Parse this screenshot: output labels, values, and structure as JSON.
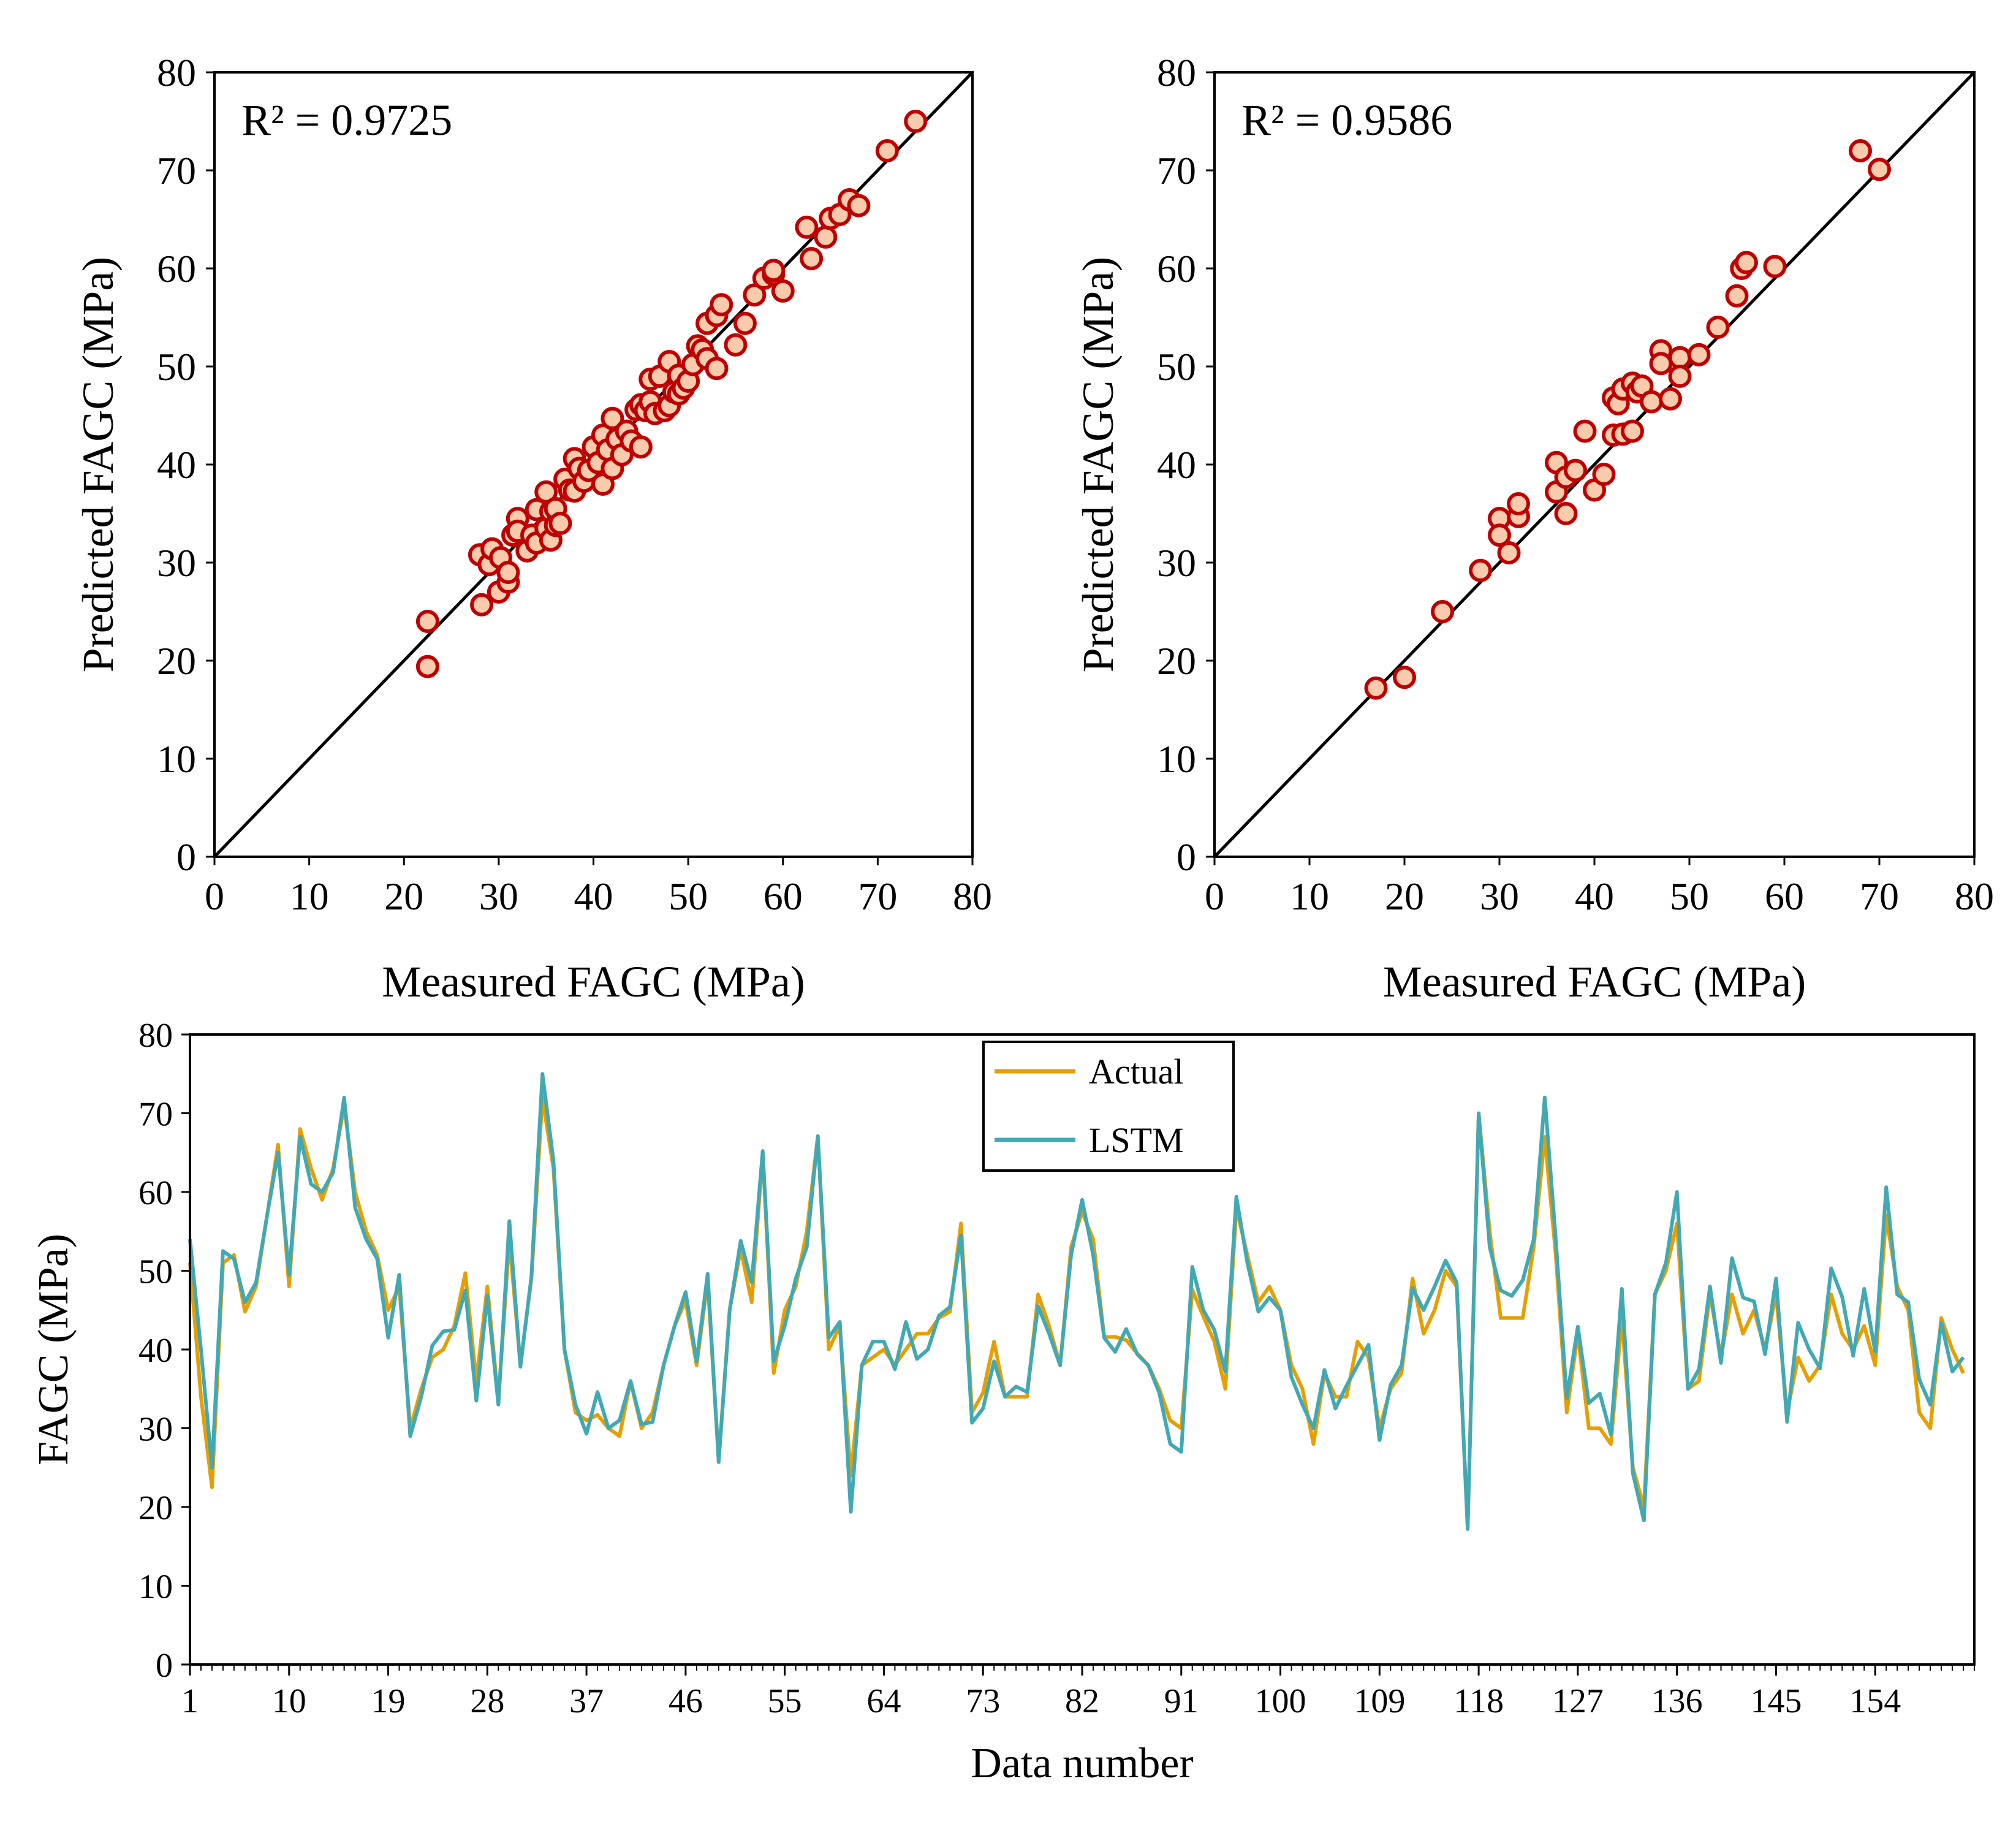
{
  "chart_data": [
    {
      "type": "scatter",
      "panel": "top-left",
      "xlabel": "Measured FAGC (MPa)",
      "ylabel": "Predicted FAGC (MPa)",
      "xlim": [
        0,
        80
      ],
      "ylim": [
        0,
        80
      ],
      "xticks": [
        0,
        10,
        20,
        30,
        40,
        50,
        60,
        70,
        80
      ],
      "yticks": [
        0,
        10,
        20,
        30,
        40,
        50,
        60,
        70,
        80
      ],
      "annotation": "R² = 0.9725",
      "reference_line": [
        [
          0,
          0
        ],
        [
          80,
          80
        ]
      ],
      "marker_color": "#c00000",
      "marker_fill": "#f8cbad",
      "points": [
        [
          22.5,
          24
        ],
        [
          22.5,
          19.4
        ],
        [
          28,
          30.8
        ],
        [
          28.2,
          25.7
        ],
        [
          29,
          29.8
        ],
        [
          29.3,
          31.4
        ],
        [
          30,
          27
        ],
        [
          30.2,
          30.5
        ],
        [
          31,
          28
        ],
        [
          31,
          29
        ],
        [
          31.5,
          32.8
        ],
        [
          32,
          34.5
        ],
        [
          32,
          33.2
        ],
        [
          33,
          31.2
        ],
        [
          33.5,
          32.8
        ],
        [
          34,
          35.4
        ],
        [
          34,
          32
        ],
        [
          35,
          33.5
        ],
        [
          35,
          37.2
        ],
        [
          35.5,
          35.2
        ],
        [
          35.5,
          32.3
        ],
        [
          36,
          33.8
        ],
        [
          36,
          35.5
        ],
        [
          36.5,
          34
        ],
        [
          37,
          38.5
        ],
        [
          37.5,
          37.4
        ],
        [
          38,
          37.3
        ],
        [
          38,
          40.6
        ],
        [
          38.5,
          39.6
        ],
        [
          39,
          38.3
        ],
        [
          39.5,
          39.4
        ],
        [
          40,
          41.8
        ],
        [
          40.5,
          40.2
        ],
        [
          41,
          43
        ],
        [
          41,
          38
        ],
        [
          41.5,
          41.5
        ],
        [
          42,
          44.7
        ],
        [
          42,
          39.6
        ],
        [
          42.5,
          42.6
        ],
        [
          43,
          41
        ],
        [
          43.5,
          43.4
        ],
        [
          44,
          42.4
        ],
        [
          44.5,
          45.6
        ],
        [
          45,
          46.1
        ],
        [
          45,
          41.8
        ],
        [
          45.5,
          45.5
        ],
        [
          46,
          48.7
        ],
        [
          46,
          46.4
        ],
        [
          46.5,
          45.2
        ],
        [
          47,
          49
        ],
        [
          47.5,
          45.5
        ],
        [
          48,
          50.5
        ],
        [
          48,
          46
        ],
        [
          48.5,
          47.4
        ],
        [
          49,
          49.1
        ],
        [
          49,
          47.2
        ],
        [
          49.5,
          47.8
        ],
        [
          50,
          48.5
        ],
        [
          50.5,
          50.2
        ],
        [
          51,
          52.1
        ],
        [
          51.5,
          51.7
        ],
        [
          52,
          54.4
        ],
        [
          52,
          50.8
        ],
        [
          53,
          49.8
        ],
        [
          53,
          55.2
        ],
        [
          53.5,
          56.3
        ],
        [
          55,
          52.2
        ],
        [
          56,
          54.4
        ],
        [
          57,
          57.3
        ],
        [
          58,
          59
        ],
        [
          59,
          59.4
        ],
        [
          59,
          59.8
        ],
        [
          60,
          57.7
        ],
        [
          62.5,
          64.2
        ],
        [
          63,
          61
        ],
        [
          64.5,
          63.2
        ],
        [
          65,
          65.1
        ],
        [
          66,
          65.5
        ],
        [
          67,
          67
        ],
        [
          68,
          66.4
        ],
        [
          71,
          72
        ],
        [
          74,
          75
        ]
      ]
    },
    {
      "type": "scatter",
      "panel": "top-right",
      "xlabel": "Measured FAGC (MPa)",
      "ylabel": "Predicted FAGC (MPa)",
      "xlim": [
        0,
        80
      ],
      "ylim": [
        0,
        80
      ],
      "xticks": [
        0,
        10,
        20,
        30,
        40,
        50,
        60,
        70,
        80
      ],
      "yticks": [
        0,
        10,
        20,
        30,
        40,
        50,
        60,
        70,
        80
      ],
      "annotation": "R² = 0.9586",
      "reference_line": [
        [
          0,
          0
        ],
        [
          80,
          80
        ]
      ],
      "marker_color": "#c00000",
      "marker_fill": "#f8cbad",
      "points": [
        [
          17,
          17.2
        ],
        [
          20,
          18.3
        ],
        [
          24,
          25
        ],
        [
          28,
          29.2
        ],
        [
          30,
          34.5
        ],
        [
          30,
          32.8
        ],
        [
          31,
          31
        ],
        [
          32,
          34.7
        ],
        [
          32,
          36
        ],
        [
          36,
          40.2
        ],
        [
          36,
          37.2
        ],
        [
          37,
          35
        ],
        [
          37,
          38.7
        ],
        [
          38,
          39.4
        ],
        [
          39,
          43.4
        ],
        [
          40,
          37.4
        ],
        [
          41,
          39
        ],
        [
          42,
          46.8
        ],
        [
          42,
          43
        ],
        [
          42.5,
          46.2
        ],
        [
          43,
          47.7
        ],
        [
          43,
          43.1
        ],
        [
          44,
          48.3
        ],
        [
          44,
          43.4
        ],
        [
          44.5,
          47.4
        ],
        [
          45,
          48
        ],
        [
          46,
          46.4
        ],
        [
          47,
          51.6
        ],
        [
          47,
          50.3
        ],
        [
          48,
          46.7
        ],
        [
          49,
          50.9
        ],
        [
          49,
          49
        ],
        [
          51,
          51.2
        ],
        [
          53,
          54
        ],
        [
          55,
          57.2
        ],
        [
          55.5,
          60
        ],
        [
          56,
          60.6
        ],
        [
          59,
          60.2
        ],
        [
          68,
          72
        ],
        [
          70,
          70.1
        ]
      ]
    },
    {
      "type": "line",
      "panel": "bottom",
      "xlabel": "Data number",
      "ylabel": "FAGC (MPa)",
      "ylim": [
        0,
        80
      ],
      "yticks": [
        0,
        10,
        20,
        30,
        40,
        50,
        60,
        70,
        80
      ],
      "xticks": [
        1,
        10,
        19,
        28,
        37,
        46,
        55,
        64,
        73,
        82,
        91,
        100,
        109,
        118,
        127,
        136,
        145,
        154
      ],
      "x_range": [
        1,
        163
      ],
      "legend": "top-center",
      "series": [
        {
          "name": "Actual",
          "color": "#e69f00",
          "values": [
            51,
            34,
            22.5,
            51,
            52,
            44.8,
            48,
            57,
            66,
            48,
            68,
            63,
            59,
            63,
            71,
            60,
            55,
            52,
            45,
            48,
            30,
            35,
            39,
            40,
            43,
            49.7,
            36,
            48,
            33.5,
            54,
            38,
            49,
            72,
            63,
            40,
            32,
            31,
            31.7,
            30,
            29,
            36,
            30,
            32,
            38,
            43,
            46.2,
            38,
            48.7,
            26,
            45,
            52.8,
            46,
            65,
            37,
            45,
            48,
            55,
            67,
            40,
            43,
            24,
            38,
            39,
            40,
            38,
            40,
            42,
            42,
            44,
            44.8,
            56,
            32,
            34.5,
            41,
            34,
            34,
            34,
            47,
            43,
            38,
            53,
            57.5,
            54,
            41.6,
            41.6,
            41.2,
            39.5,
            38,
            35,
            31,
            30,
            47.6,
            44.2,
            41,
            35,
            58,
            52,
            46,
            48,
            45,
            38,
            35,
            28,
            37,
            34,
            34,
            41,
            39,
            30,
            35,
            37,
            49,
            42,
            45,
            50,
            48,
            17.3,
            70,
            55,
            44,
            44,
            44,
            53,
            67,
            52,
            32,
            42,
            30,
            30,
            28,
            44,
            25,
            20,
            47,
            50,
            56,
            35,
            36,
            47,
            39,
            47,
            42,
            45,
            40,
            47,
            32,
            39,
            36,
            38,
            47,
            42,
            40,
            43,
            38,
            57,
            48,
            45,
            32,
            30,
            44,
            40,
            37
          ]
        },
        {
          "name": "LSTM",
          "color": "#41a9b3",
          "values": [
            54,
            40,
            25,
            52.5,
            51.5,
            46,
            48.5,
            57,
            65,
            49.5,
            67,
            61,
            60,
            62.5,
            72,
            58,
            54,
            51.5,
            41.5,
            49.5,
            29,
            34,
            40.5,
            42.3,
            42.5,
            47.5,
            33.5,
            46.8,
            33,
            56.3,
            37.8,
            49.3,
            75,
            64,
            40,
            33,
            29.3,
            34.6,
            30,
            31,
            36,
            30.5,
            30.8,
            38,
            43,
            47.3,
            38.5,
            49.6,
            25.7,
            45,
            53.8,
            48.5,
            65.2,
            38.5,
            43,
            49,
            53,
            67.1,
            41.5,
            43.5,
            19.4,
            38,
            41,
            41,
            37.5,
            43.5,
            38.8,
            40,
            44.3,
            45.4,
            54.5,
            30.7,
            32.5,
            38.5,
            34,
            35.3,
            34.6,
            45.5,
            42,
            38,
            52,
            59,
            52,
            41.5,
            39.7,
            42.6,
            39.4,
            38,
            34.5,
            28,
            27,
            50.5,
            45,
            42.5,
            37.2,
            59.4,
            51,
            44.8,
            46.6,
            45,
            36.5,
            33,
            30,
            37.4,
            32.5,
            35.4,
            38,
            40.6,
            28.5,
            35.5,
            38,
            47.8,
            45,
            48,
            51.3,
            48.5,
            17.2,
            70,
            53,
            47.5,
            46.8,
            48.8,
            54,
            72,
            54,
            33.8,
            42.9,
            33.2,
            34.4,
            29.2,
            47.7,
            24.3,
            18.3,
            47,
            51,
            60,
            35,
            37.5,
            48,
            38.3,
            51.6,
            46.6,
            46.1,
            39.4,
            49,
            30.8,
            43.4,
            40,
            37.6,
            50.3,
            46.7,
            39.2,
            47.7,
            39.7,
            60.6,
            47,
            46,
            36.2,
            33,
            43.4,
            37.2,
            39
          ]
        }
      ]
    }
  ]
}
